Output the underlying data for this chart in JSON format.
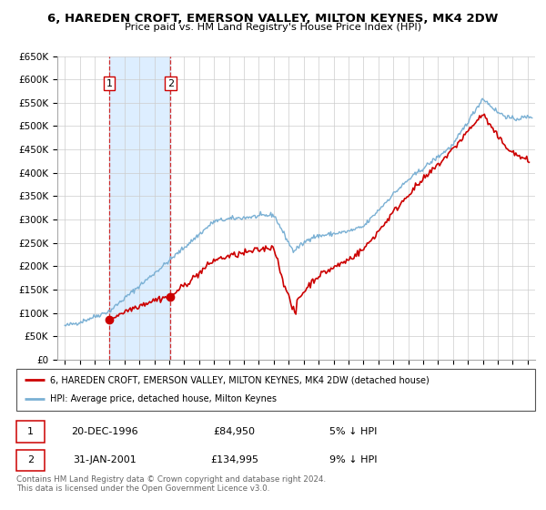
{
  "title": "6, HAREDEN CROFT, EMERSON VALLEY, MILTON KEYNES, MK4 2DW",
  "subtitle": "Price paid vs. HM Land Registry's House Price Index (HPI)",
  "legend_line1": "6, HAREDEN CROFT, EMERSON VALLEY, MILTON KEYNES, MK4 2DW (detached house)",
  "legend_line2": "HPI: Average price, detached house, Milton Keynes",
  "transaction1_date": "20-DEC-1996",
  "transaction1_price": "£84,950",
  "transaction1_hpi": "5% ↓ HPI",
  "transaction1_x": 1996.97,
  "transaction1_y": 84950,
  "transaction2_date": "31-JAN-2001",
  "transaction2_price": "£134,995",
  "transaction2_hpi": "9% ↓ HPI",
  "transaction2_x": 2001.08,
  "transaction2_y": 134995,
  "price_color": "#cc0000",
  "hpi_color": "#7ab0d4",
  "shade_color": "#ddeeff",
  "footer": "Contains HM Land Registry data © Crown copyright and database right 2024.\nThis data is licensed under the Open Government Licence v3.0.",
  "ylim": [
    0,
    650000
  ],
  "yticks": [
    0,
    50000,
    100000,
    150000,
    200000,
    250000,
    300000,
    350000,
    400000,
    450000,
    500000,
    550000,
    600000,
    650000
  ],
  "xlim_start": 1993.5,
  "xlim_end": 2025.5
}
